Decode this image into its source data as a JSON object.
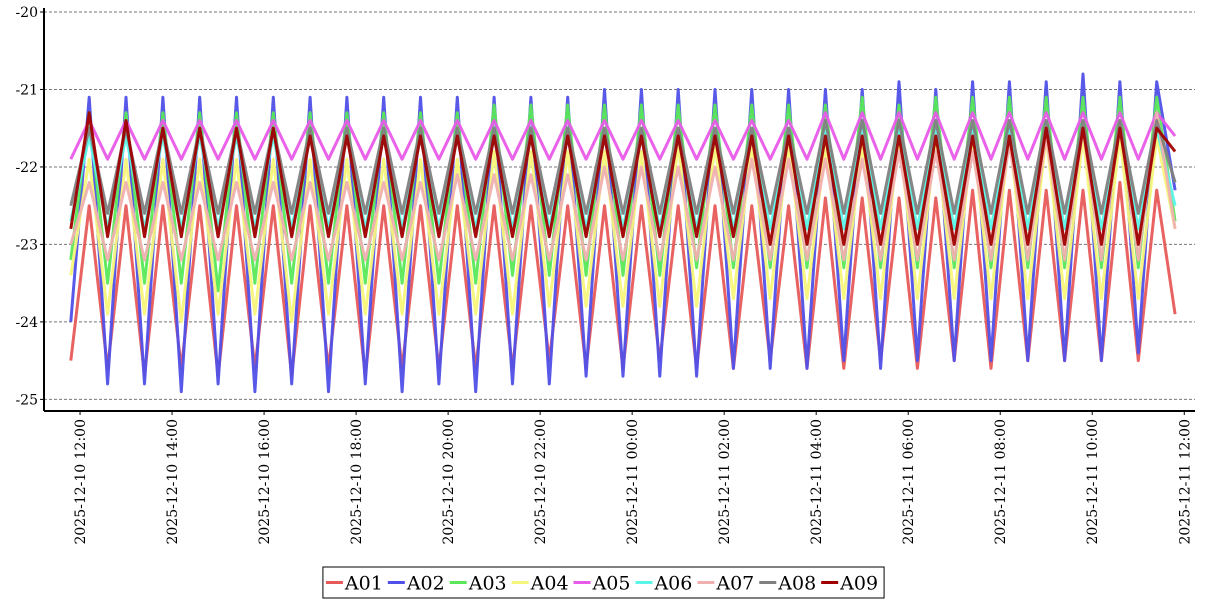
{
  "chart_data": {
    "type": "line",
    "x": [
      "2025-12-10 11:48",
      "2025-12-10 12:12",
      "2025-12-10 12:36",
      "2025-12-10 13:00",
      "2025-12-10 13:24",
      "2025-12-10 13:48",
      "2025-12-10 14:12",
      "2025-12-10 14:36",
      "2025-12-10 15:00",
      "2025-12-10 15:24",
      "2025-12-10 15:48",
      "2025-12-10 16:12",
      "2025-12-10 16:36",
      "2025-12-10 17:00",
      "2025-12-10 17:24",
      "2025-12-10 17:48",
      "2025-12-10 18:12",
      "2025-12-10 18:36",
      "2025-12-10 19:00",
      "2025-12-10 19:24",
      "2025-12-10 19:48",
      "2025-12-10 20:12",
      "2025-12-10 20:36",
      "2025-12-10 21:00",
      "2025-12-10 21:24",
      "2025-12-10 21:48",
      "2025-12-10 22:12",
      "2025-12-10 22:36",
      "2025-12-10 23:00",
      "2025-12-10 23:24",
      "2025-12-10 23:48",
      "2025-12-11 00:12",
      "2025-12-11 00:36",
      "2025-12-11 01:00",
      "2025-12-11 01:24",
      "2025-12-11 01:48",
      "2025-12-11 02:12",
      "2025-12-11 02:36",
      "2025-12-11 03:00",
      "2025-12-11 03:24",
      "2025-12-11 03:48",
      "2025-12-11 04:12",
      "2025-12-11 04:36",
      "2025-12-11 05:00",
      "2025-12-11 05:24",
      "2025-12-11 05:48",
      "2025-12-11 06:12",
      "2025-12-11 06:36",
      "2025-12-11 07:00",
      "2025-12-11 07:24",
      "2025-12-11 07:48",
      "2025-12-11 08:12",
      "2025-12-11 08:36",
      "2025-12-11 09:00",
      "2025-12-11 09:24",
      "2025-12-11 09:48",
      "2025-12-11 10:12",
      "2025-12-11 10:36",
      "2025-12-11 11:00",
      "2025-12-11 11:24",
      "2025-12-11 11:48"
    ],
    "series": [
      {
        "name": "A01",
        "color": "#e85a5a",
        "values": [
          -24.5,
          -22.5,
          -24.6,
          -22.5,
          -24.7,
          -22.5,
          -24.6,
          -22.5,
          -24.7,
          -22.5,
          -24.6,
          -22.5,
          -24.7,
          -22.5,
          -24.6,
          -22.5,
          -24.7,
          -22.5,
          -24.6,
          -22.5,
          -24.6,
          -22.5,
          -24.6,
          -22.5,
          -24.6,
          -22.5,
          -24.5,
          -22.5,
          -24.6,
          -22.5,
          -24.6,
          -22.5,
          -24.5,
          -22.5,
          -24.6,
          -22.5,
          -24.6,
          -22.5,
          -24.5,
          -22.5,
          -24.6,
          -22.4,
          -24.6,
          -22.4,
          -24.5,
          -22.4,
          -24.6,
          -22.4,
          -24.5,
          -22.3,
          -24.6,
          -22.3,
          -24.5,
          -22.3,
          -24.5,
          -22.3,
          -24.5,
          -22.2,
          -24.5,
          -22.3,
          -23.9
        ]
      },
      {
        "name": "A02",
        "color": "#5050e8",
        "values": [
          -24.0,
          -21.1,
          -24.8,
          -21.1,
          -24.8,
          -21.1,
          -24.9,
          -21.1,
          -24.8,
          -21.1,
          -24.9,
          -21.1,
          -24.8,
          -21.1,
          -24.9,
          -21.1,
          -24.8,
          -21.1,
          -24.9,
          -21.1,
          -24.8,
          -21.1,
          -24.9,
          -21.1,
          -24.8,
          -21.1,
          -24.8,
          -21.1,
          -24.7,
          -21.0,
          -24.7,
          -21.0,
          -24.7,
          -21.0,
          -24.7,
          -21.0,
          -24.6,
          -21.0,
          -24.6,
          -21.0,
          -24.6,
          -21.0,
          -24.5,
          -21.0,
          -24.6,
          -20.9,
          -24.5,
          -21.0,
          -24.5,
          -20.9,
          -24.5,
          -20.9,
          -24.5,
          -20.9,
          -24.5,
          -20.8,
          -24.5,
          -20.9,
          -24.4,
          -20.9,
          -22.3
        ]
      },
      {
        "name": "A03",
        "color": "#5ae85a",
        "values": [
          -23.2,
          -21.3,
          -23.5,
          -21.3,
          -23.5,
          -21.3,
          -23.5,
          -21.3,
          -23.6,
          -21.3,
          -23.5,
          -21.3,
          -23.5,
          -21.3,
          -23.5,
          -21.3,
          -23.5,
          -21.3,
          -23.5,
          -21.3,
          -23.5,
          -21.3,
          -23.5,
          -21.2,
          -23.4,
          -21.2,
          -23.4,
          -21.2,
          -23.4,
          -21.2,
          -23.4,
          -21.2,
          -23.4,
          -21.2,
          -23.3,
          -21.2,
          -23.3,
          -21.2,
          -23.3,
          -21.2,
          -23.3,
          -21.2,
          -23.3,
          -21.1,
          -23.3,
          -21.2,
          -23.3,
          -21.1,
          -23.3,
          -21.1,
          -23.3,
          -21.1,
          -23.3,
          -21.1,
          -23.3,
          -21.1,
          -23.3,
          -21.1,
          -23.3,
          -21.1,
          -22.7
        ]
      },
      {
        "name": "A04",
        "color": "#f5f57a",
        "values": [
          -23.4,
          -21.9,
          -23.9,
          -21.9,
          -23.9,
          -21.9,
          -24.0,
          -21.9,
          -23.9,
          -21.9,
          -23.9,
          -21.9,
          -24.0,
          -21.9,
          -23.9,
          -21.9,
          -23.9,
          -21.9,
          -23.9,
          -21.9,
          -23.9,
          -21.9,
          -23.9,
          -21.8,
          -23.9,
          -21.8,
          -23.8,
          -21.8,
          -23.8,
          -21.8,
          -23.8,
          -21.8,
          -23.8,
          -21.7,
          -23.8,
          -21.7,
          -23.7,
          -21.7,
          -23.7,
          -21.7,
          -23.7,
          -21.7,
          -23.7,
          -21.7,
          -23.7,
          -21.6,
          -23.7,
          -21.6,
          -23.7,
          -21.6,
          -23.7,
          -21.6,
          -23.7,
          -21.6,
          -23.7,
          -21.6,
          -23.7,
          -21.6,
          -23.7,
          -21.6,
          -22.8
        ]
      },
      {
        "name": "A05",
        "color": "#e85ae8",
        "values": [
          -21.9,
          -21.4,
          -21.9,
          -21.4,
          -21.9,
          -21.4,
          -21.9,
          -21.4,
          -21.9,
          -21.4,
          -21.9,
          -21.4,
          -21.9,
          -21.4,
          -21.9,
          -21.4,
          -21.9,
          -21.4,
          -21.9,
          -21.4,
          -21.9,
          -21.4,
          -21.9,
          -21.4,
          -21.9,
          -21.4,
          -21.9,
          -21.4,
          -21.9,
          -21.4,
          -21.9,
          -21.4,
          -21.9,
          -21.4,
          -21.9,
          -21.4,
          -21.9,
          -21.4,
          -21.9,
          -21.4,
          -21.9,
          -21.3,
          -21.9,
          -21.3,
          -21.9,
          -21.3,
          -21.9,
          -21.3,
          -21.9,
          -21.3,
          -21.9,
          -21.3,
          -21.9,
          -21.3,
          -21.9,
          -21.3,
          -21.9,
          -21.3,
          -21.9,
          -21.3,
          -21.6
        ]
      },
      {
        "name": "A06",
        "color": "#5af5e8",
        "values": [
          -22.7,
          -21.6,
          -22.8,
          -21.6,
          -22.8,
          -21.6,
          -22.8,
          -21.6,
          -22.8,
          -21.6,
          -22.8,
          -21.6,
          -22.8,
          -21.6,
          -22.8,
          -21.6,
          -22.8,
          -21.6,
          -22.8,
          -21.6,
          -22.8,
          -21.6,
          -22.8,
          -21.6,
          -22.8,
          -21.6,
          -22.8,
          -21.6,
          -22.8,
          -21.6,
          -22.8,
          -21.6,
          -22.8,
          -21.6,
          -22.8,
          -21.6,
          -22.8,
          -21.6,
          -22.8,
          -21.6,
          -22.8,
          -21.5,
          -22.8,
          -21.5,
          -22.8,
          -21.5,
          -22.8,
          -21.5,
          -22.8,
          -21.5,
          -22.8,
          -21.5,
          -22.8,
          -21.5,
          -22.8,
          -21.5,
          -22.8,
          -21.5,
          -22.8,
          -21.5,
          -22.5
        ]
      },
      {
        "name": "A07",
        "color": "#f0b0b0",
        "values": [
          -23.0,
          -22.2,
          -23.2,
          -22.2,
          -23.2,
          -22.2,
          -23.2,
          -22.2,
          -23.2,
          -22.2,
          -23.2,
          -22.2,
          -23.2,
          -22.2,
          -23.2,
          -22.2,
          -23.2,
          -22.2,
          -23.2,
          -22.2,
          -23.2,
          -22.1,
          -23.2,
          -22.1,
          -23.2,
          -22.1,
          -23.2,
          -22.1,
          -23.2,
          -22.0,
          -23.2,
          -22.0,
          -23.2,
          -22.0,
          -23.2,
          -22.0,
          -23.2,
          -21.9,
          -23.2,
          -21.9,
          -23.2,
          -21.9,
          -23.2,
          -21.9,
          -23.2,
          -21.8,
          -23.2,
          -21.8,
          -23.2,
          -21.8,
          -23.2,
          -21.7,
          -23.2,
          -21.6,
          -23.2,
          -21.5,
          -23.2,
          -21.4,
          -23.2,
          -21.3,
          -22.8
        ]
      },
      {
        "name": "A08",
        "color": "#808080",
        "values": [
          -22.5,
          -21.5,
          -22.6,
          -21.5,
          -22.6,
          -21.5,
          -22.6,
          -21.5,
          -22.6,
          -21.5,
          -22.6,
          -21.5,
          -22.6,
          -21.5,
          -22.6,
          -21.5,
          -22.6,
          -21.5,
          -22.6,
          -21.5,
          -22.6,
          -21.5,
          -22.6,
          -21.5,
          -22.6,
          -21.5,
          -22.6,
          -21.5,
          -22.6,
          -21.5,
          -22.6,
          -21.5,
          -22.6,
          -21.5,
          -22.6,
          -21.5,
          -22.6,
          -21.5,
          -22.6,
          -21.5,
          -22.6,
          -21.4,
          -22.6,
          -21.4,
          -22.6,
          -21.4,
          -22.6,
          -21.4,
          -22.6,
          -21.4,
          -22.6,
          -21.4,
          -22.6,
          -21.4,
          -22.6,
          -21.4,
          -22.6,
          -21.4,
          -22.6,
          -21.4,
          -22.2
        ]
      },
      {
        "name": "A09",
        "color": "#a00000",
        "values": [
          -22.8,
          -21.3,
          -22.9,
          -21.4,
          -22.9,
          -21.5,
          -22.9,
          -21.5,
          -22.9,
          -21.5,
          -22.9,
          -21.5,
          -22.9,
          -21.6,
          -22.9,
          -21.6,
          -22.9,
          -21.6,
          -22.9,
          -21.6,
          -22.9,
          -21.6,
          -22.9,
          -21.6,
          -22.9,
          -21.6,
          -22.9,
          -21.6,
          -22.9,
          -21.6,
          -22.9,
          -21.6,
          -22.9,
          -21.6,
          -22.9,
          -21.6,
          -22.9,
          -21.6,
          -23.0,
          -21.6,
          -23.0,
          -21.6,
          -23.0,
          -21.6,
          -23.0,
          -21.6,
          -23.0,
          -21.6,
          -23.0,
          -21.6,
          -23.0,
          -21.6,
          -23.0,
          -21.5,
          -23.0,
          -21.5,
          -23.0,
          -21.5,
          -23.0,
          -21.5,
          -21.8
        ]
      }
    ],
    "xlim": [
      "2025-12-10 11:13",
      "2025-12-11 12:14"
    ],
    "xticks": [
      "2025-12-10 12:00",
      "2025-12-10 14:00",
      "2025-12-10 16:00",
      "2025-12-10 18:00",
      "2025-12-10 20:00",
      "2025-12-10 22:00",
      "2025-12-11 00:00",
      "2025-12-11 02:00",
      "2025-12-11 04:00",
      "2025-12-11 06:00",
      "2025-12-11 08:00",
      "2025-12-11 10:00",
      "2025-12-11 12:00"
    ],
    "ylim": [
      -25.15,
      -20
    ],
    "yticks": [
      -25,
      -24,
      -23,
      -22,
      -21,
      -20
    ],
    "grid": true,
    "legend": "bottom"
  }
}
